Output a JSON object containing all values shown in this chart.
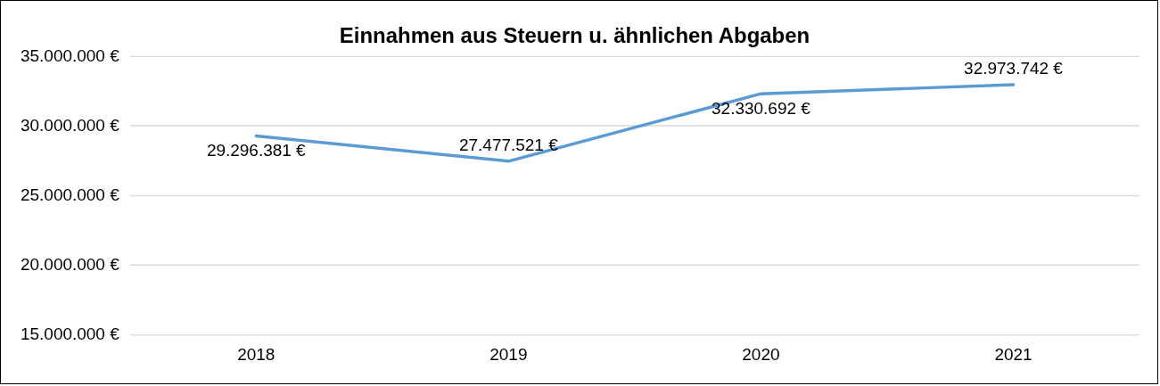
{
  "chart_data": {
    "type": "line",
    "title": "Einnahmen aus Steuern u. ähnlichen Abgaben",
    "categories": [
      "2018",
      "2019",
      "2020",
      "2021"
    ],
    "series": [
      {
        "color": "#5b9bd5",
        "values": [
          29296381,
          27477521,
          32330692,
          32973742
        ],
        "value_labels": [
          "29.296.381 €",
          "27.477.521 €",
          "32.330.692 €",
          "32.973.742 €"
        ]
      }
    ],
    "ylim": [
      15000000,
      35000000
    ],
    "yticks": [
      {
        "value": 15000000,
        "label": "15.000.000 €"
      },
      {
        "value": 20000000,
        "label": "20.000.000 €"
      },
      {
        "value": 25000000,
        "label": "25.000.000 €"
      },
      {
        "value": 30000000,
        "label": "30.000.000 €"
      },
      {
        "value": 35000000,
        "label": "35.000.000 €"
      }
    ],
    "grid": "y",
    "legend": false,
    "marker": "none",
    "line_style": "solid"
  }
}
